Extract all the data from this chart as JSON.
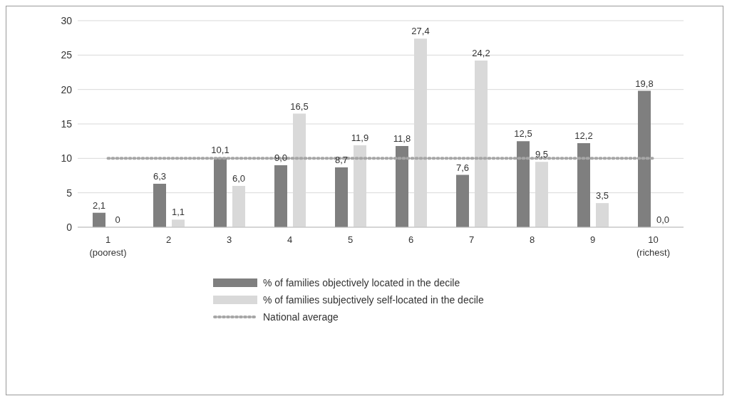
{
  "chart_data": {
    "type": "bar",
    "categories": [
      "1\n(poorest)",
      "2",
      "3",
      "4",
      "5",
      "6",
      "7",
      "8",
      "9",
      "10\n(richest)"
    ],
    "series": [
      {
        "name": "% of families objectively located in the decile",
        "color": "#7f7f7f",
        "values": [
          2.1,
          6.3,
          10.1,
          9.0,
          8.7,
          11.8,
          7.6,
          12.5,
          12.2,
          19.8
        ],
        "value_labels": [
          "2,1",
          "6,3",
          "10,1",
          "9,0",
          "8,7",
          "11,8",
          "7,6",
          "12,5",
          "12,2",
          "19,8"
        ]
      },
      {
        "name": "% of families subjectively self-located in the decile",
        "color": "#d9d9d9",
        "values": [
          0,
          1.1,
          6.0,
          16.5,
          11.9,
          27.4,
          24.2,
          9.5,
          3.5,
          0.0
        ],
        "value_labels": [
          "0",
          "1,1",
          "6,0",
          "16,5",
          "11,9",
          "27,4",
          "24,2",
          "9,5",
          "3,5",
          "0,0"
        ]
      },
      {
        "name": "National average",
        "type": "line",
        "color": "#a6a6a6",
        "line_style": "dotted",
        "marker": "none",
        "values": [
          10,
          10,
          10,
          10,
          10,
          10,
          10,
          10,
          10,
          10
        ]
      }
    ],
    "ylim": [
      0,
      30
    ],
    "yticks": [
      0,
      5,
      10,
      15,
      20,
      25,
      30
    ],
    "grid": "y",
    "legend": "bottom"
  }
}
